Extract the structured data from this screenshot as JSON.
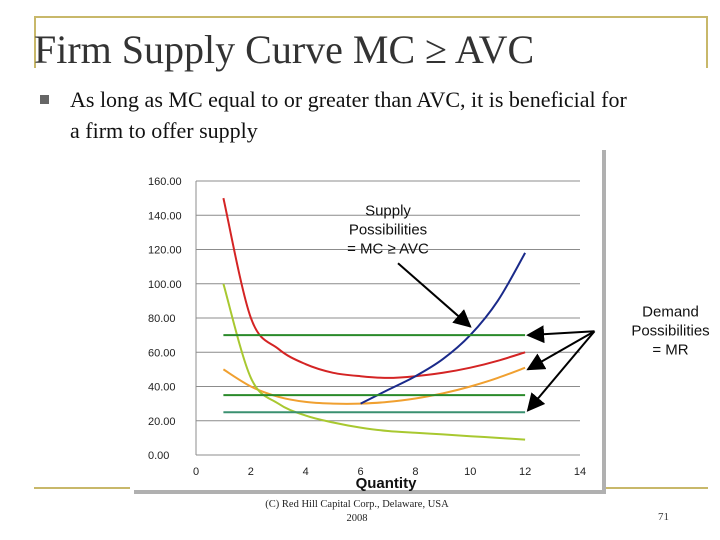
{
  "slide": {
    "title": "Firm Supply Curve MC ≥ AVC",
    "bullet": "As long as MC equal to or greater than AVC, it is beneficial for a firm to offer supply",
    "footer_line1": "(C) Red Hill Capital Corp., Delaware, USA",
    "footer_line2": "2008",
    "page_number": "71"
  },
  "colors": {
    "accent_gold": "#c8b86a",
    "mc": "#d42424",
    "avc": "#f0a030",
    "afc": "#a8c830",
    "supply": "#1a2a8a",
    "demand": "#2a8a2a",
    "demand_low": "#3a9070"
  },
  "chart_data": {
    "type": "line",
    "xlabel": "Quantity",
    "ylabel": "",
    "xlim": [
      0,
      14
    ],
    "ylim": [
      0,
      160
    ],
    "x_ticks": [
      "0",
      "2",
      "4",
      "6",
      "8",
      "10",
      "12",
      "14"
    ],
    "y_ticks": [
      "0.00",
      "20.00",
      "40.00",
      "60.00",
      "80.00",
      "100.00",
      "120.00",
      "140.00",
      "160.00"
    ],
    "grid": "horizontal",
    "series": [
      {
        "key": "mc",
        "x": [
          1,
          2,
          3,
          4,
          5,
          6,
          7,
          8,
          9,
          10,
          11,
          12
        ],
        "values": [
          150,
          80,
          62,
          53,
          48,
          46,
          45,
          46,
          48,
          51,
          55,
          60
        ]
      },
      {
        "key": "avc",
        "x": [
          1,
          2,
          3,
          4,
          5,
          6,
          7,
          8,
          9,
          10,
          11,
          12
        ],
        "values": [
          50,
          40,
          34,
          31,
          30,
          30,
          31,
          33,
          36,
          40,
          45,
          51
        ]
      },
      {
        "key": "afc",
        "x": [
          1,
          2,
          3,
          4,
          5,
          6,
          7,
          8,
          9,
          10,
          11,
          12
        ],
        "values": [
          100,
          45,
          30,
          23,
          19,
          16,
          14,
          13,
          12,
          11,
          10,
          9
        ]
      },
      {
        "key": "supply",
        "x": [
          6,
          7,
          8,
          9,
          10,
          11,
          12
        ],
        "values": [
          30,
          38,
          46,
          56,
          70,
          90,
          118
        ]
      },
      {
        "key": "demand_high",
        "x": [
          1,
          12
        ],
        "values": [
          70,
          70
        ]
      },
      {
        "key": "demand_mid",
        "x": [
          1,
          12
        ],
        "values": [
          35,
          35
        ]
      },
      {
        "key": "demand_low",
        "x": [
          1,
          12
        ],
        "values": [
          25,
          25
        ]
      }
    ],
    "annotations": [
      {
        "lines": [
          "Supply",
          "Possibilities",
          "= MC ≥ AVC"
        ],
        "at": [
          7,
          140
        ],
        "arrows_to": [
          [
            10,
            75
          ]
        ]
      },
      {
        "lines": [
          "Demand",
          "Possibilities",
          "= MR"
        ],
        "at": [
          17.3,
          81
        ],
        "arrows_to": [
          [
            12.1,
            70
          ],
          [
            12.1,
            50
          ],
          [
            12.1,
            26
          ]
        ]
      }
    ]
  }
}
